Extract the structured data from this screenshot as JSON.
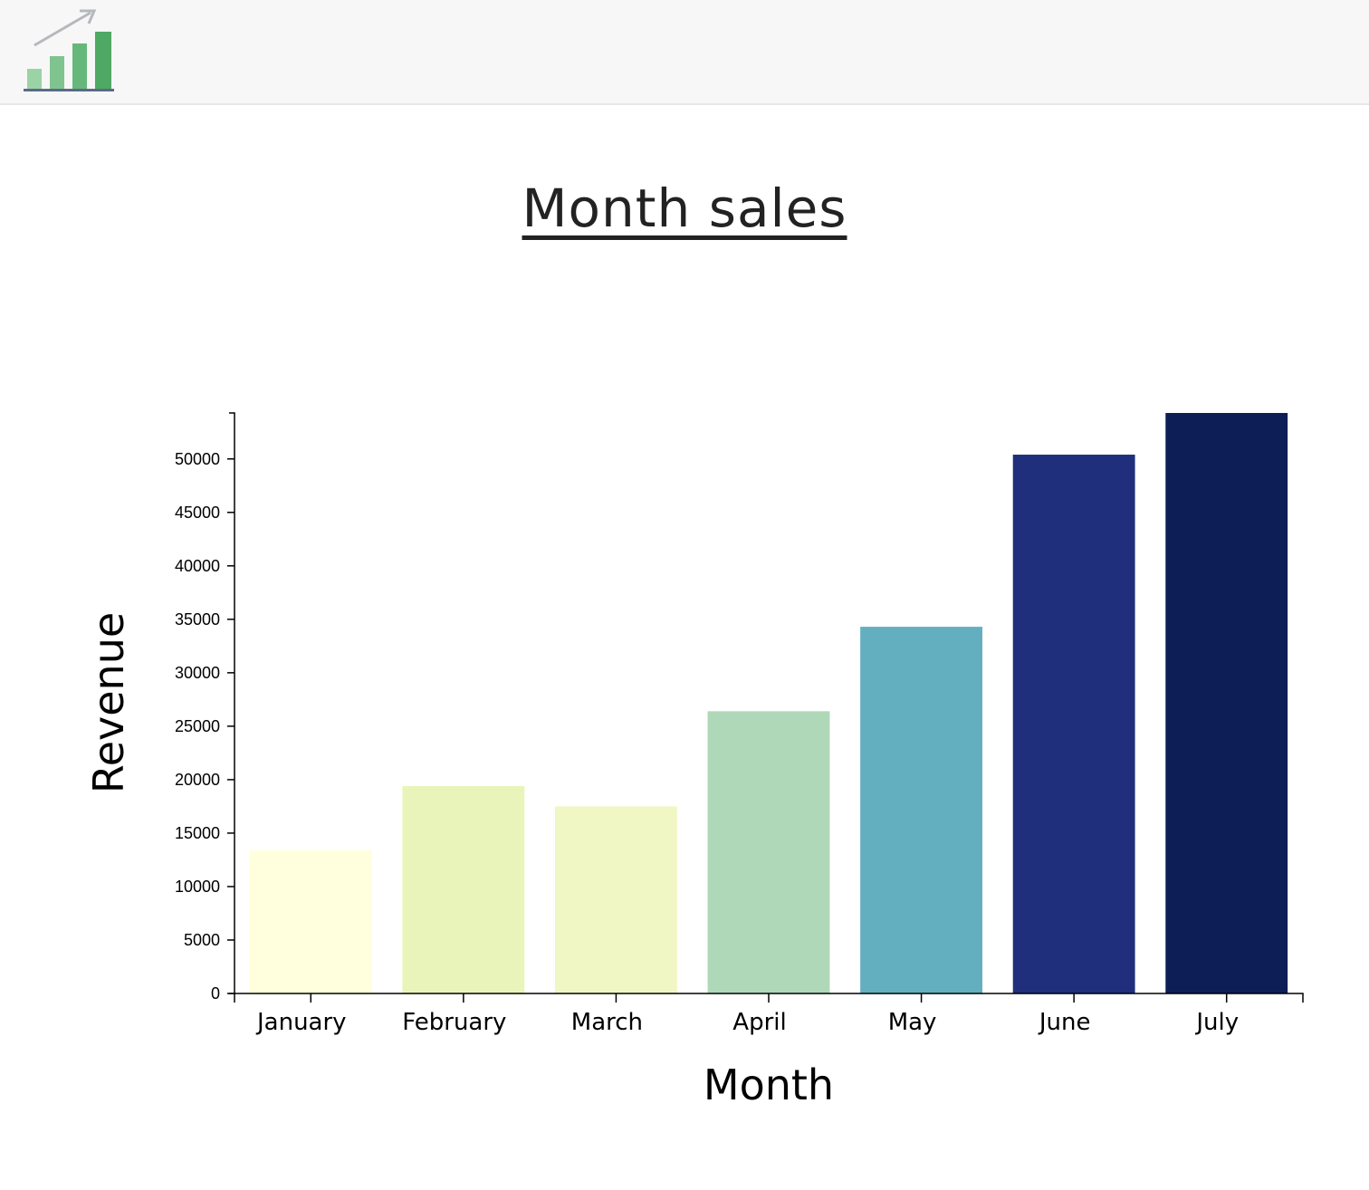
{
  "header": {
    "logo_icon": "bar-chart-growth-icon"
  },
  "page": {
    "title": "Month sales"
  },
  "chart_data": {
    "type": "bar",
    "title": "Month sales",
    "xlabel": "Month",
    "ylabel": "Revenue",
    "categories": [
      "January",
      "February",
      "March",
      "April",
      "May",
      "June",
      "July"
    ],
    "values": [
      13400,
      19400,
      17500,
      26400,
      34300,
      50400,
      54300
    ],
    "colors": [
      "#ffffdd",
      "#e9f4bb",
      "#f0f7c4",
      "#aed8b8",
      "#63afbf",
      "#1f2f7c",
      "#0d1e57"
    ],
    "yticks": [
      0,
      5000,
      10000,
      15000,
      20000,
      25000,
      30000,
      35000,
      40000,
      45000,
      50000
    ],
    "ylim": [
      0,
      54300
    ],
    "grid": false,
    "legend": "none"
  }
}
